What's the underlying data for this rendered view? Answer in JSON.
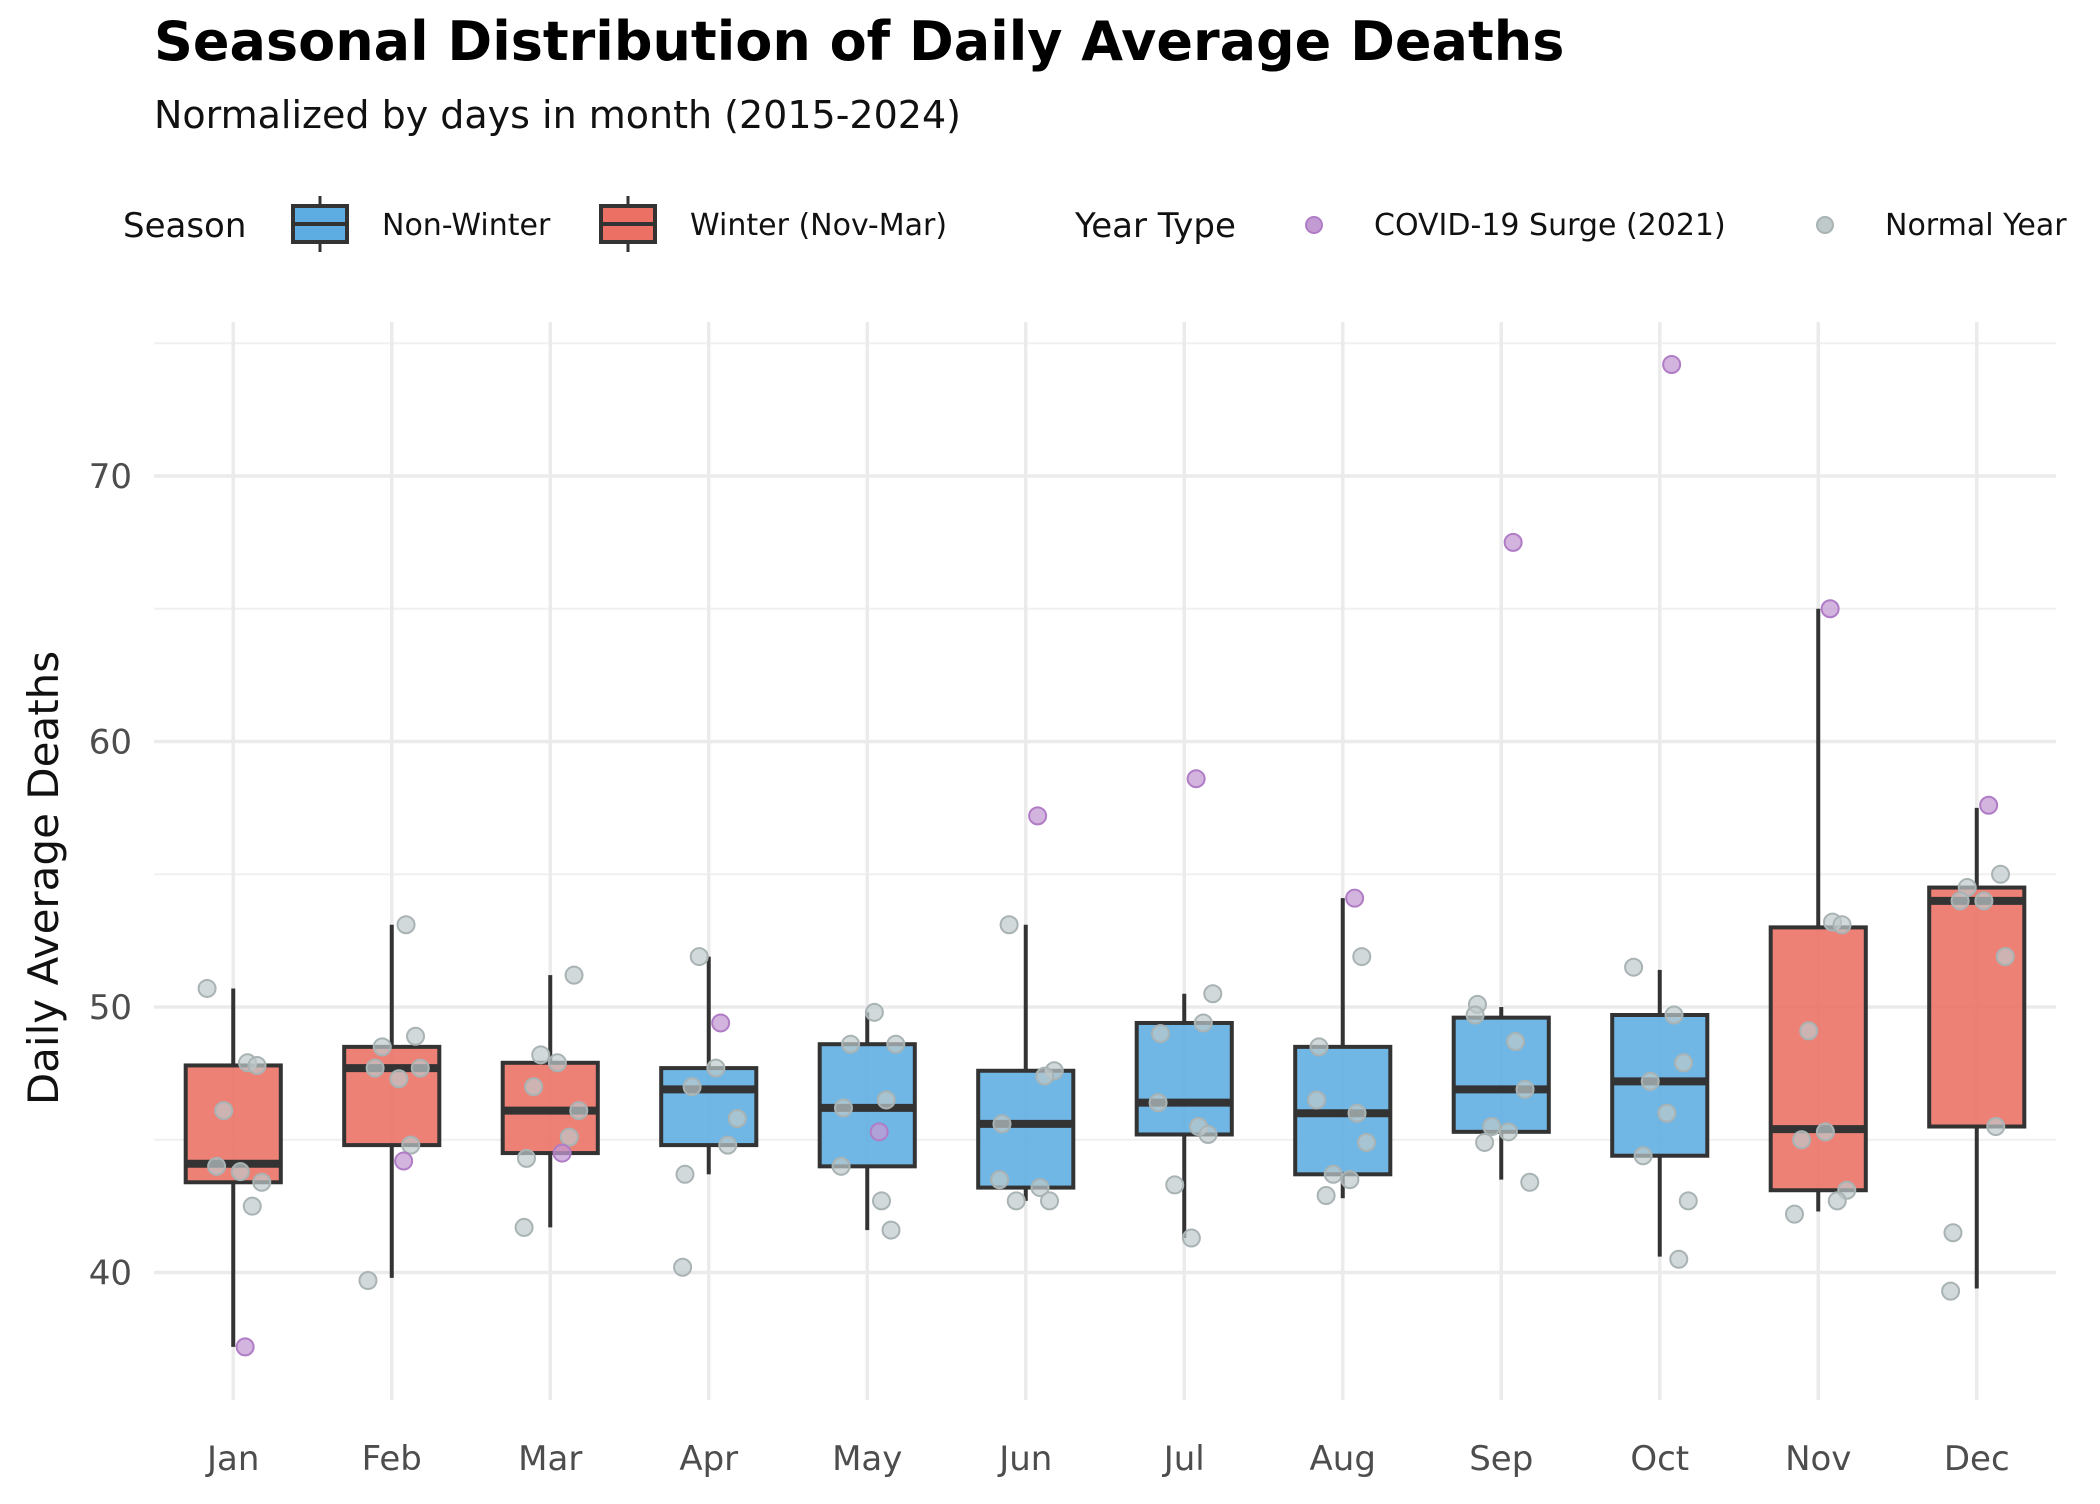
{
  "chart_data": {
    "type": "box",
    "title": "Seasonal Distribution of Daily Average Deaths",
    "subtitle": "Normalized by days in month (2015-2024)",
    "xlabel": "",
    "ylabel": "Daily Average Deaths",
    "ylim": [
      35.2,
      75.8
    ],
    "yticks": [
      40,
      50,
      60,
      70
    ],
    "ytick_labels": [
      "40",
      "50",
      "60",
      "70"
    ],
    "grid": true,
    "legend_position": "top",
    "categories": [
      "Jan",
      "Feb",
      "Mar",
      "Apr",
      "May",
      "Jun",
      "Jul",
      "Aug",
      "Sep",
      "Oct",
      "Nov",
      "Dec"
    ],
    "legend": {
      "season_title": "Season",
      "season_items": [
        {
          "label": "Non-Winter",
          "color": "#5DADE2"
        },
        {
          "label": "Winter (Nov-Mar)",
          "color": "#EC7063"
        }
      ],
      "year_title": "Year Type",
      "year_items": [
        {
          "label": "COVID-19 Surge (2021)",
          "color": "#C39BD3"
        },
        {
          "label": "Normal Year",
          "color": "#BFC9CA"
        }
      ]
    },
    "boxes": [
      {
        "month": "Jan",
        "season": "Winter (Nov-Mar)",
        "whisker_low": 37.2,
        "q1": 43.4,
        "median": 44.1,
        "q3": 47.8,
        "whisker_high": 50.7
      },
      {
        "month": "Feb",
        "season": "Winter (Nov-Mar)",
        "whisker_low": 39.8,
        "q1": 44.8,
        "median": 47.7,
        "q3": 48.5,
        "whisker_high": 53.1
      },
      {
        "month": "Mar",
        "season": "Winter (Nov-Mar)",
        "whisker_low": 41.7,
        "q1": 44.5,
        "median": 46.1,
        "q3": 47.9,
        "whisker_high": 51.2
      },
      {
        "month": "Apr",
        "season": "Non-Winter",
        "whisker_low": 43.7,
        "q1": 44.8,
        "median": 46.9,
        "q3": 47.7,
        "whisker_high": 51.9
      },
      {
        "month": "May",
        "season": "Non-Winter",
        "whisker_low": 41.6,
        "q1": 44.0,
        "median": 46.2,
        "q3": 48.6,
        "whisker_high": 49.8
      },
      {
        "month": "Jun",
        "season": "Non-Winter",
        "whisker_low": 42.7,
        "q1": 43.2,
        "median": 45.6,
        "q3": 47.6,
        "whisker_high": 53.1
      },
      {
        "month": "Jul",
        "season": "Non-Winter",
        "whisker_low": 41.3,
        "q1": 45.2,
        "median": 46.4,
        "q3": 49.4,
        "whisker_high": 50.5
      },
      {
        "month": "Aug",
        "season": "Non-Winter",
        "whisker_low": 42.8,
        "q1": 43.7,
        "median": 46.0,
        "q3": 48.5,
        "whisker_high": 54.1
      },
      {
        "month": "Sep",
        "season": "Non-Winter",
        "whisker_low": 43.5,
        "q1": 45.3,
        "median": 46.9,
        "q3": 49.6,
        "whisker_high": 50.0
      },
      {
        "month": "Oct",
        "season": "Non-Winter",
        "whisker_low": 40.6,
        "q1": 44.4,
        "median": 47.2,
        "q3": 49.7,
        "whisker_high": 51.4
      },
      {
        "month": "Nov",
        "season": "Winter (Nov-Mar)",
        "whisker_low": 42.3,
        "q1": 43.1,
        "median": 45.4,
        "q3": 53.0,
        "whisker_high": 65.0
      },
      {
        "month": "Dec",
        "season": "Winter (Nov-Mar)",
        "whisker_low": 39.4,
        "q1": 45.5,
        "median": 54.0,
        "q3": 54.5,
        "whisker_high": 57.5
      }
    ],
    "points": [
      {
        "month": "Jan",
        "type": "Normal Year",
        "values": [
          50.7,
          47.9,
          47.8,
          46.1,
          43.8,
          44.0,
          43.4,
          42.5
        ]
      },
      {
        "month": "Jan",
        "type": "COVID-19 Surge (2021)",
        "values": [
          37.2
        ]
      },
      {
        "month": "Feb",
        "type": "Normal Year",
        "values": [
          53.1,
          48.9,
          48.5,
          47.3,
          47.7,
          47.7,
          44.8,
          39.7
        ]
      },
      {
        "month": "Feb",
        "type": "COVID-19 Surge (2021)",
        "values": [
          44.2
        ]
      },
      {
        "month": "Mar",
        "type": "Normal Year",
        "values": [
          51.2,
          48.2,
          47.9,
          47.0,
          46.1,
          45.1,
          44.3,
          41.7
        ]
      },
      {
        "month": "Mar",
        "type": "COVID-19 Surge (2021)",
        "values": [
          44.5
        ]
      },
      {
        "month": "Apr",
        "type": "Normal Year",
        "values": [
          51.9,
          47.7,
          47.0,
          45.8,
          44.8,
          43.7,
          40.2
        ]
      },
      {
        "month": "Apr",
        "type": "COVID-19 Surge (2021)",
        "values": [
          49.4
        ]
      },
      {
        "month": "May",
        "type": "Normal Year",
        "values": [
          49.8,
          48.6,
          48.6,
          46.5,
          46.2,
          44.0,
          42.7,
          41.6
        ]
      },
      {
        "month": "May",
        "type": "COVID-19 Surge (2021)",
        "values": [
          45.3
        ]
      },
      {
        "month": "Jun",
        "type": "Normal Year",
        "values": [
          53.1,
          47.6,
          47.4,
          45.6,
          43.5,
          43.2,
          42.7,
          42.7
        ]
      },
      {
        "month": "Jun",
        "type": "COVID-19 Surge (2021)",
        "values": [
          57.2
        ]
      },
      {
        "month": "Jul",
        "type": "Normal Year",
        "values": [
          50.5,
          49.4,
          49.0,
          46.4,
          45.5,
          45.2,
          43.3,
          41.3
        ]
      },
      {
        "month": "Jul",
        "type": "COVID-19 Surge (2021)",
        "values": [
          58.6
        ]
      },
      {
        "month": "Aug",
        "type": "Normal Year",
        "values": [
          51.9,
          48.5,
          46.5,
          46.0,
          44.9,
          43.7,
          43.5,
          42.9
        ]
      },
      {
        "month": "Aug",
        "type": "COVID-19 Surge (2021)",
        "values": [
          54.1
        ]
      },
      {
        "month": "Sep",
        "type": "Normal Year",
        "values": [
          50.1,
          49.7,
          48.7,
          46.9,
          45.5,
          45.3,
          44.9,
          43.4
        ]
      },
      {
        "month": "Sep",
        "type": "COVID-19 Surge (2021)",
        "values": [
          67.5
        ]
      },
      {
        "month": "Oct",
        "type": "Normal Year",
        "values": [
          51.5,
          49.7,
          47.9,
          47.2,
          46.0,
          44.4,
          42.7,
          40.5
        ]
      },
      {
        "month": "Oct",
        "type": "COVID-19 Surge (2021)",
        "values": [
          74.2
        ]
      },
      {
        "month": "Nov",
        "type": "Normal Year",
        "values": [
          53.2,
          53.1,
          49.1,
          45.3,
          45.0,
          43.1,
          42.7,
          42.2
        ]
      },
      {
        "month": "Nov",
        "type": "COVID-19 Surge (2021)",
        "values": [
          65.0
        ]
      },
      {
        "month": "Dec",
        "type": "Normal Year",
        "values": [
          55.0,
          54.5,
          54.0,
          54.0,
          51.9,
          45.5,
          41.5,
          39.3
        ]
      },
      {
        "month": "Dec",
        "type": "COVID-19 Surge (2021)",
        "values": [
          57.6
        ]
      }
    ]
  }
}
